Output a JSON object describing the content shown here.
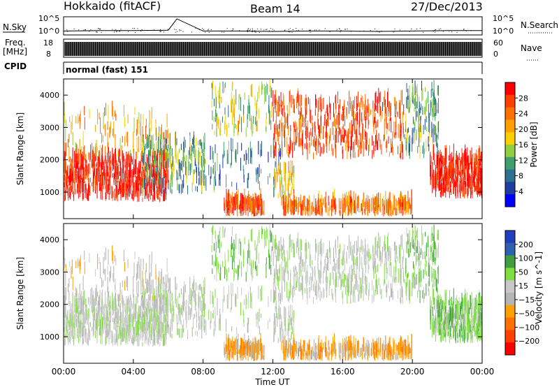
{
  "header": {
    "station": "Hokkaido (fitACF)",
    "beam": "Beam 14",
    "date": "27/Dec/2013"
  },
  "top_labels": {
    "nsky": "N.Sky",
    "nsearch": "N.Search",
    "freq": "Freq.",
    "mhz": "[MHz]",
    "cpid": "CPID",
    "nave": "Nave",
    "noise_ticks": [
      "10^5",
      "10^0"
    ],
    "freq_ticks": [
      "18",
      "8"
    ],
    "nave_ticks": [
      "60",
      "0"
    ]
  },
  "cpid_text": "normal (fast) 151",
  "colors": {
    "power_scale": [
      "#0000ff",
      "#1f3fa0",
      "#2f6f8f",
      "#3f9f6f",
      "#8fcf3f",
      "#ffcf00",
      "#ff9f00",
      "#ff6f00",
      "#ff3f00",
      "#ff0000"
    ],
    "velocity_scale": [
      "#1f3fbf",
      "#2f5faf",
      "#3f9f3f",
      "#7fdf3f",
      "#c8c8c8",
      "#b4b4b4",
      "#ffa000",
      "#ff7000",
      "#ff4000",
      "#ff0000"
    ]
  },
  "chart_data": [
    {
      "type": "line",
      "name": "noise-panel",
      "ylabel": "N.Sky",
      "right_label": "N.Search",
      "y_ticks": [
        "10^5",
        "10^0"
      ],
      "x": [
        0,
        2,
        4,
        6,
        6.5,
        8,
        10,
        12,
        14,
        16,
        18,
        20,
        22,
        24
      ],
      "series": [
        {
          "values": [
            0.6,
            0.7,
            0.7,
            0.8,
            3.5,
            0.6,
            0.6,
            0.5,
            0.6,
            0.6,
            0.5,
            0.6,
            0.7,
            0.7
          ]
        }
      ]
    },
    {
      "type": "bar",
      "name": "frequency-panel",
      "ylabel": "Freq. [MHz]",
      "right_label": "Nave",
      "y_ticks": [
        "18",
        "8"
      ],
      "right_ticks": [
        "60",
        "0"
      ],
      "range_mhz": [
        8,
        18
      ]
    },
    {
      "type": "heatmap",
      "name": "power-panel",
      "xlabel": "",
      "ylabel": "Slant Range [km]",
      "xlim": [
        0,
        24
      ],
      "ylim": [
        180,
        4500
      ],
      "x_ticks": [
        "00:00",
        "04:00",
        "08:00",
        "12:00",
        "16:00",
        "20:00",
        "00:00"
      ],
      "y_ticks": [
        1000,
        2000,
        3000,
        4000
      ],
      "colorbar_label": "Power [dB]",
      "colorbar_ticks": [
        4,
        8,
        12,
        16,
        20,
        24,
        28
      ],
      "colorbar_range": [
        0,
        30
      ]
    },
    {
      "type": "heatmap",
      "name": "velocity-panel",
      "xlabel": "Time UT",
      "ylabel": "Slant Range [km]",
      "xlim": [
        0,
        24
      ],
      "ylim": [
        180,
        4500
      ],
      "x_ticks": [
        "00:00",
        "04:00",
        "08:00",
        "12:00",
        "16:00",
        "20:00",
        "00:00"
      ],
      "y_ticks": [
        1000,
        2000,
        3000,
        4000
      ],
      "colorbar_label": "Velocity [m s^-1]",
      "colorbar_ticks": [
        "200",
        "100",
        "50",
        "15",
        "−15",
        "−50",
        "−100",
        "−200"
      ]
    }
  ]
}
